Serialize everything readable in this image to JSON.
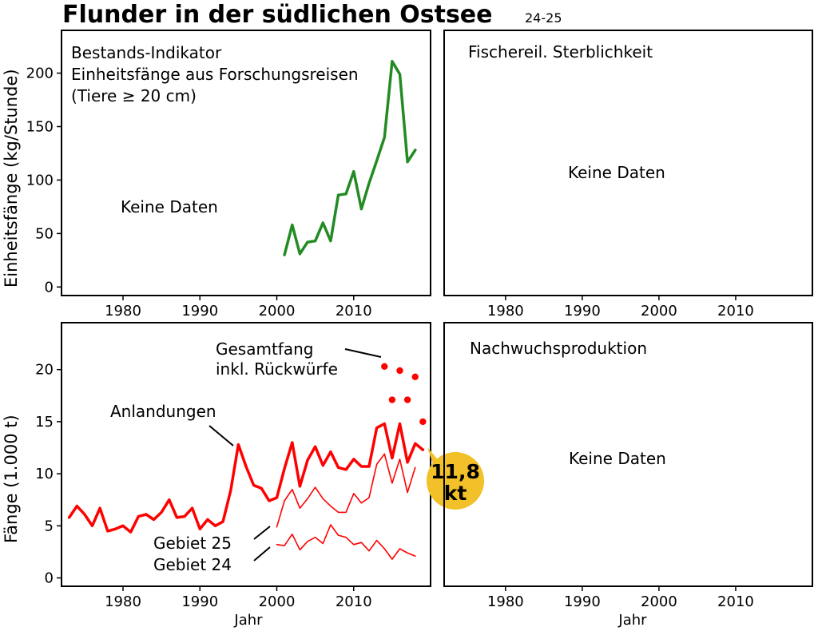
{
  "title": "Flunder in der südlichen Ostsee",
  "subtitle": "24-25",
  "colors": {
    "cpue": "#238b23",
    "catch": "#ff0000",
    "badge": "#f2c028"
  },
  "panels": {
    "stock": {
      "label_lines": [
        "Bestands-Indikator",
        "Einheitsfänge aus Forschungsreisen",
        "(Tiere ≥ 20 cm)"
      ],
      "no_data": "Keine Daten",
      "ylabel": "Einheitsfänge (kg/Stunde)"
    },
    "mortality": {
      "label": "Fischereil. Sterblichkeit",
      "no_data": "Keine Daten"
    },
    "catch": {
      "ylabel": "Fänge (1.000 t)",
      "xlabel": "Jahr",
      "ann_total_lines": [
        "Gesamtfang",
        "inkl. Rückwürfe"
      ],
      "ann_landings": "Anlandungen",
      "ann_area25": "Gebiet 25",
      "ann_area24": "Gebiet 24",
      "badge_lines": [
        "11,8",
        "kt"
      ]
    },
    "recruitment": {
      "label": "Nachwuchsproduktion",
      "no_data": "Keine Daten",
      "xlabel": "Jahr"
    }
  },
  "chart_data": [
    {
      "type": "line",
      "panel": "stock",
      "xlim": [
        1972,
        2020
      ],
      "ylim": [
        -8,
        240
      ],
      "x_ticks": [
        1980,
        1990,
        2000,
        2010
      ],
      "y_ticks": [
        0,
        50,
        100,
        150,
        200
      ],
      "series": [
        {
          "x": [
            2001,
            2002,
            2003,
            2004,
            2005,
            2006,
            2007,
            2008,
            2009,
            2010,
            2011,
            2012,
            2013,
            2014,
            2015,
            2016,
            2017,
            2018
          ],
          "y": [
            30,
            58,
            31,
            42,
            43,
            60,
            43,
            86,
            87,
            108,
            73,
            97,
            118,
            140,
            211,
            199,
            117,
            128
          ]
        }
      ]
    },
    {
      "type": "line",
      "panel": "catch",
      "xlim": [
        1972,
        2020
      ],
      "ylim": [
        -0.8,
        24.5
      ],
      "x_ticks": [
        1980,
        1990,
        2000,
        2010
      ],
      "y_ticks": [
        0,
        5,
        10,
        15,
        20
      ],
      "series": [
        {
          "name": "Anlandungen",
          "x": [
            1973,
            1974,
            1975,
            1976,
            1977,
            1978,
            1979,
            1980,
            1981,
            1982,
            1983,
            1984,
            1985,
            1986,
            1987,
            1988,
            1989,
            1990,
            1991,
            1992,
            1993,
            1994,
            1995,
            1996,
            1997,
            1998,
            1999,
            2000,
            2001,
            2002,
            2003,
            2004,
            2005,
            2006,
            2007,
            2008,
            2009,
            2010,
            2011,
            2012,
            2013,
            2014,
            2015,
            2016,
            2017,
            2018,
            2019
          ],
          "y": [
            5.8,
            6.9,
            6.1,
            5.0,
            6.7,
            4.5,
            4.7,
            5.0,
            4.4,
            5.9,
            6.1,
            5.6,
            6.3,
            7.5,
            5.8,
            5.9,
            6.7,
            4.7,
            5.6,
            5.0,
            5.4,
            8.4,
            12.8,
            10.7,
            8.9,
            8.6,
            7.4,
            7.7,
            10.5,
            13.0,
            8.8,
            11.3,
            12.6,
            10.8,
            12.1,
            10.6,
            10.4,
            11.4,
            10.7,
            10.7,
            14.4,
            14.8,
            11.5,
            14.8,
            11.1,
            12.9,
            12.3
          ]
        },
        {
          "name": "Gebiet 25",
          "x": [
            2000,
            2001,
            2002,
            2003,
            2004,
            2005,
            2006,
            2007,
            2008,
            2009,
            2010,
            2011,
            2012,
            2013,
            2014,
            2015,
            2016,
            2017,
            2018
          ],
          "y": [
            4.9,
            7.4,
            8.5,
            6.7,
            7.6,
            8.7,
            7.6,
            6.9,
            6.3,
            6.3,
            8.1,
            7.2,
            7.7,
            10.9,
            11.9,
            9.1,
            11.4,
            8.2,
            10.6
          ]
        },
        {
          "name": "Gebiet 24",
          "x": [
            2000,
            2001,
            2002,
            2003,
            2004,
            2005,
            2006,
            2007,
            2008,
            2009,
            2010,
            2011,
            2012,
            2013,
            2014,
            2015,
            2016,
            2017,
            2018
          ],
          "y": [
            3.2,
            3.1,
            4.2,
            2.7,
            3.5,
            3.9,
            3.3,
            5.1,
            4.1,
            3.9,
            3.2,
            3.4,
            2.6,
            3.6,
            2.8,
            1.8,
            2.8,
            2.4,
            2.1
          ]
        },
        {
          "name": "Gesamtfang inkl. Rückwürfe",
          "style": "points",
          "x": [
            2014,
            2015,
            2016,
            2017,
            2018,
            2019
          ],
          "y": [
            20.3,
            17.1,
            19.9,
            17.1,
            19.3,
            15.0
          ]
        }
      ]
    }
  ]
}
